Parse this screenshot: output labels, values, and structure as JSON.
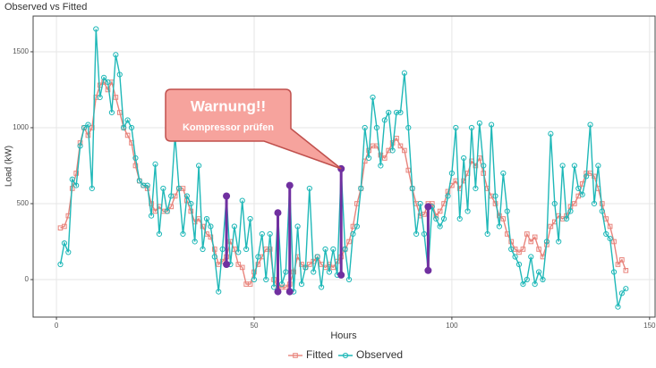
{
  "chart_data": {
    "type": "line",
    "title": "Observed vs Fitted",
    "xlabel": "Hours",
    "ylabel": "Load (kW)",
    "xlim": [
      -5.9,
      151.4
    ],
    "ylim": [
      -247,
      1735
    ],
    "xticks": [
      0,
      50,
      100,
      150
    ],
    "yticks": [
      0,
      500,
      1000,
      1500
    ],
    "grid": true,
    "legend": "bottom",
    "x": [
      1,
      2,
      3,
      4,
      5,
      6,
      7,
      8,
      9,
      10,
      11,
      12,
      13,
      14,
      15,
      16,
      17,
      18,
      19,
      20,
      21,
      22,
      23,
      24,
      25,
      26,
      27,
      28,
      29,
      30,
      31,
      32,
      33,
      34,
      35,
      36,
      37,
      38,
      39,
      40,
      41,
      42,
      43,
      44,
      45,
      46,
      47,
      48,
      49,
      50,
      51,
      52,
      53,
      54,
      55,
      56,
      57,
      58,
      59,
      60,
      61,
      62,
      63,
      64,
      65,
      66,
      67,
      68,
      69,
      70,
      71,
      72,
      73,
      74,
      75,
      76,
      77,
      78,
      79,
      80,
      81,
      82,
      83,
      84,
      85,
      86,
      87,
      88,
      89,
      90,
      91,
      92,
      93,
      94,
      95,
      96,
      97,
      98,
      99,
      100,
      101,
      102,
      103,
      104,
      105,
      106,
      107,
      108,
      109,
      110,
      111,
      112,
      113,
      114,
      115,
      116,
      117,
      118,
      119,
      120,
      121,
      122,
      123,
      124,
      125,
      126,
      127,
      128,
      129,
      130,
      131,
      132,
      133,
      134,
      135,
      136,
      137,
      138,
      139,
      140,
      141,
      142,
      143,
      144
    ],
    "series": [
      {
        "name": "Fitted",
        "color": "#e8837b",
        "marker": "square",
        "values": [
          340,
          350,
          420,
          600,
          700,
          900,
          1000,
          950,
          1000,
          1200,
          1280,
          1300,
          1250,
          1300,
          1200,
          1100,
          1000,
          950,
          900,
          750,
          650,
          620,
          600,
          500,
          450,
          480,
          450,
          450,
          480,
          550,
          600,
          600,
          520,
          450,
          380,
          400,
          350,
          300,
          280,
          200,
          100,
          120,
          150,
          250,
          200,
          100,
          80,
          -30,
          -30,
          50,
          100,
          150,
          200,
          200,
          0,
          -50,
          -50,
          -50,
          -30,
          50,
          150,
          100,
          80,
          100,
          120,
          150,
          100,
          80,
          100,
          80,
          120,
          150,
          200,
          250,
          350,
          500,
          600,
          780,
          850,
          880,
          880,
          820,
          800,
          850,
          900,
          930,
          880,
          850,
          720,
          600,
          500,
          420,
          430,
          500,
          500,
          420,
          450,
          500,
          580,
          620,
          650,
          600,
          650,
          700,
          780,
          750,
          800,
          700,
          600,
          550,
          500,
          420,
          400,
          300,
          250,
          200,
          180,
          200,
          300,
          250,
          280,
          200,
          150,
          230,
          350,
          380,
          420,
          400,
          420,
          480,
          500,
          550,
          630,
          700,
          700,
          680,
          600,
          500,
          400,
          350,
          250,
          100,
          130,
          60
        ]
      },
      {
        "name": "Observed",
        "color": "#1fb8b8",
        "marker": "circle",
        "values": [
          100,
          240,
          180,
          660,
          620,
          880,
          1000,
          1020,
          600,
          1650,
          1200,
          1330,
          1300,
          1100,
          1480,
          1350,
          1000,
          1050,
          1000,
          800,
          650,
          620,
          620,
          420,
          760,
          300,
          600,
          450,
          550,
          950,
          600,
          300,
          550,
          500,
          250,
          750,
          200,
          400,
          350,
          150,
          -80,
          200,
          550,
          100,
          350,
          180,
          520,
          200,
          400,
          0,
          150,
          300,
          0,
          300,
          -50,
          440,
          -30,
          50,
          620,
          -80,
          350,
          -30,
          80,
          600,
          50,
          150,
          -50,
          200,
          50,
          200,
          30,
          730,
          200,
          0,
          300,
          350,
          600,
          1000,
          800,
          1200,
          1000,
          750,
          1050,
          1100,
          850,
          1100,
          1100,
          1360,
          1000,
          600,
          300,
          500,
          300,
          60,
          480,
          400,
          350,
          400,
          550,
          700,
          1000,
          400,
          800,
          450,
          1000,
          600,
          1030,
          750,
          300,
          1020,
          550,
          350,
          700,
          450,
          200,
          150,
          100,
          -30,
          0,
          150,
          -30,
          50,
          0,
          250,
          960,
          500,
          250,
          750,
          400,
          450,
          750,
          600,
          560,
          680,
          1020,
          500,
          750,
          450,
          300,
          270,
          50,
          -180,
          -90,
          -60
        ]
      }
    ],
    "highlight_color": "#7030a0",
    "highlights": [
      {
        "x": 43,
        "values": [
          550,
          100
        ]
      },
      {
        "x": 56,
        "values": [
          440,
          -80
        ]
      },
      {
        "x": 59,
        "values": [
          620,
          -80
        ]
      },
      {
        "x": 72,
        "values": [
          730,
          30
        ]
      },
      {
        "x": 94,
        "values": [
          480,
          60
        ]
      }
    ],
    "annotation": {
      "title": "Warnung!!",
      "text": "Kompressor prüfen",
      "x": 72,
      "y": 730
    }
  }
}
